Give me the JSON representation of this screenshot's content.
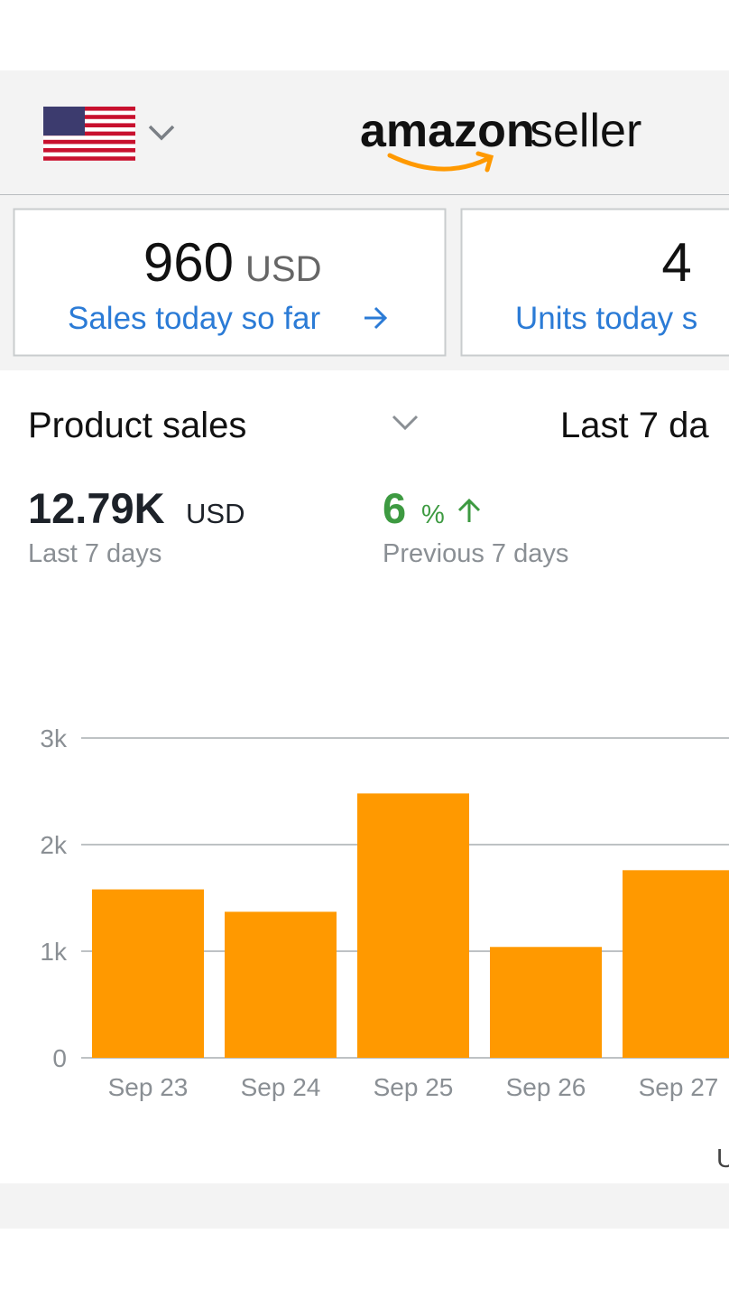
{
  "header": {
    "logo_brand": "amazon",
    "logo_product": "seller"
  },
  "cards": [
    {
      "value": "960",
      "unit": "USD",
      "label": "Sales today so far"
    },
    {
      "value": "4",
      "label": "Units today s"
    }
  ],
  "metric": {
    "selector": "Product sales",
    "period": "Last 7 da",
    "total": "12.79K",
    "total_unit": "USD",
    "total_caption": "Last 7 days",
    "change": "6",
    "change_unit": "%",
    "change_caption": "Previous 7 days"
  },
  "footer_text": "U",
  "chart_data": {
    "type": "bar",
    "categories": [
      "Sep 23",
      "Sep 24",
      "Sep 25",
      "Sep 26",
      "Sep 27"
    ],
    "values": [
      1580,
      1370,
      2480,
      1040,
      1760
    ],
    "color": "#ff9900",
    "ylim": [
      0,
      3000
    ],
    "yticks": [
      0,
      {
        "value": 1000,
        "label": "1k"
      },
      {
        "value": 2000,
        "label": "2k"
      },
      {
        "value": 3000,
        "label": "3k"
      }
    ],
    "grid": true
  }
}
